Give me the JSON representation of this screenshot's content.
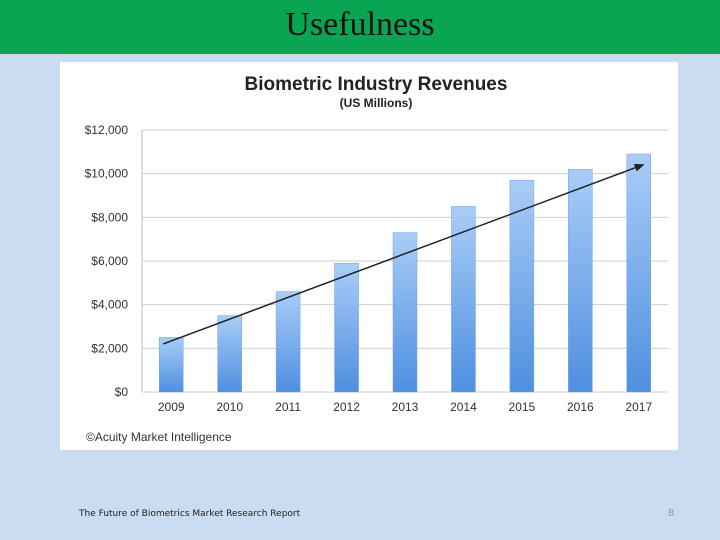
{
  "slide": {
    "title": "Usefulness",
    "footer": "The Future of Biometrics Market Research Report",
    "page_number": "8"
  },
  "colors": {
    "title_bar": "#0aa553",
    "background": "#c9dcf2",
    "bar_top": "#a9cdf7",
    "bar_bottom": "#4f8fe0"
  },
  "chart_data": {
    "type": "bar",
    "title": "Biometric Industry Revenues",
    "subtitle": "(US Millions)",
    "categories": [
      "2009",
      "2010",
      "2011",
      "2012",
      "2013",
      "2014",
      "2015",
      "2016",
      "2017"
    ],
    "values": [
      2500,
      3500,
      4600,
      5900,
      7300,
      8500,
      9700,
      10200,
      10900
    ],
    "ylim": [
      0,
      12000
    ],
    "yticks": [
      "$0",
      "$2,000",
      "$4,000",
      "$6,000",
      "$8,000",
      "$10,000",
      "$12,000"
    ],
    "ytick_values": [
      0,
      2000,
      4000,
      6000,
      8000,
      10000,
      12000
    ],
    "trend_line": {
      "from": {
        "category": "2009",
        "value": 2200
      },
      "to": {
        "category": "2017",
        "value": 10400
      }
    },
    "grid": true,
    "source": "©Acuity Market Intelligence",
    "xlabel": "",
    "ylabel": ""
  }
}
